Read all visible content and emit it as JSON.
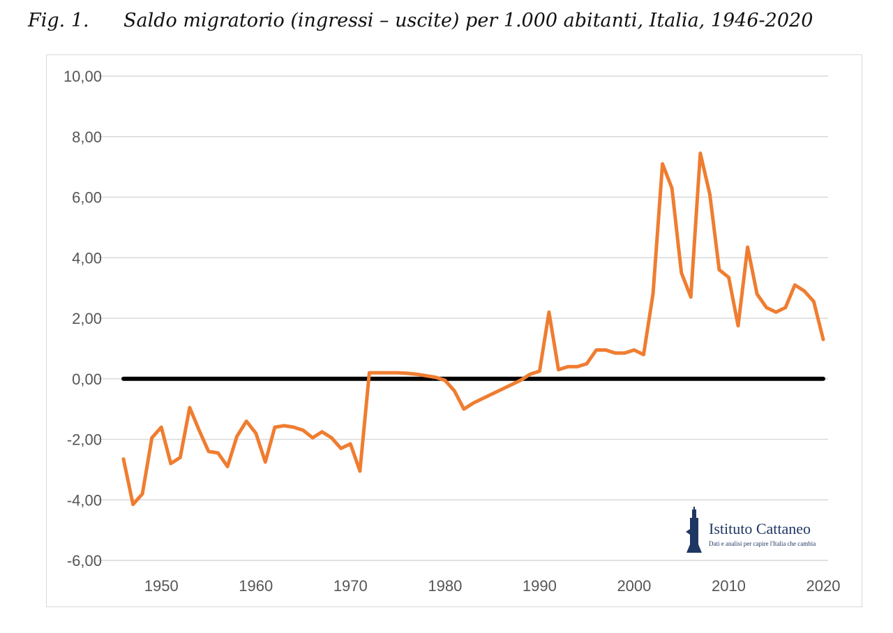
{
  "figure": {
    "label": "Fig. 1.",
    "title": "Saldo migratorio (ingressi – uscite) per 1.000 abitanti, Italia, 1946-2020"
  },
  "logo": {
    "name": "Istituto Cattaneo",
    "tagline": "Dati e analisi per capire l'Italia che cambia",
    "color": "#1f3763"
  },
  "colors": {
    "series": "#ef7d31",
    "zero_line": "#000000",
    "grid": "#d9d9d9",
    "tick_text": "#555555"
  },
  "chart_data": {
    "type": "line",
    "title": "Saldo migratorio (ingressi – uscite) per 1.000 abitanti, Italia, 1946-2020",
    "xlabel": "",
    "ylabel": "",
    "xlim": [
      1946,
      2020
    ],
    "ylim": [
      -6,
      10
    ],
    "x_ticks": [
      1950,
      1960,
      1970,
      1980,
      1990,
      2000,
      2010,
      2020
    ],
    "y_ticks": [
      "10,00",
      "8,00",
      "6,00",
      "4,00",
      "2,00",
      "0,00",
      "-2,00",
      "-4,00",
      "-6,00"
    ],
    "y_tick_values": [
      10,
      8,
      6,
      4,
      2,
      0,
      -2,
      -4,
      -6
    ],
    "grid": "horizontal",
    "reference_line": {
      "y": 0,
      "color": "#000000"
    },
    "series": [
      {
        "color": "#ef7d31",
        "x": [
          1946,
          1947,
          1948,
          1949,
          1950,
          1951,
          1952,
          1953,
          1954,
          1955,
          1956,
          1957,
          1958,
          1959,
          1960,
          1961,
          1962,
          1963,
          1964,
          1965,
          1966,
          1967,
          1968,
          1969,
          1970,
          1971,
          1972,
          1973,
          1974,
          1975,
          1976,
          1977,
          1978,
          1979,
          1980,
          1981,
          1982,
          1983,
          1984,
          1985,
          1986,
          1987,
          1988,
          1989,
          1990,
          1991,
          1992,
          1993,
          1994,
          1995,
          1996,
          1997,
          1998,
          1999,
          2000,
          2001,
          2002,
          2003,
          2004,
          2005,
          2006,
          2007,
          2008,
          2009,
          2010,
          2011,
          2012,
          2013,
          2014,
          2015,
          2016,
          2017,
          2018,
          2019,
          2020
        ],
        "values": [
          -2.65,
          -4.15,
          -3.8,
          -1.95,
          -1.6,
          -2.8,
          -2.6,
          -0.95,
          -1.7,
          -2.4,
          -2.45,
          -2.9,
          -1.9,
          -1.4,
          -1.8,
          -2.75,
          -1.6,
          -1.55,
          -1.6,
          -1.7,
          -1.95,
          -1.75,
          -1.95,
          -2.3,
          -2.15,
          -3.05,
          0.2,
          0.2,
          0.2,
          0.2,
          0.18,
          0.15,
          0.1,
          0.05,
          -0.05,
          -0.4,
          -1.0,
          -0.8,
          -0.65,
          -0.5,
          -0.35,
          -0.2,
          -0.05,
          0.15,
          0.25,
          2.2,
          0.3,
          0.4,
          0.4,
          0.5,
          0.95,
          0.95,
          0.85,
          0.85,
          0.95,
          0.8,
          2.8,
          7.1,
          6.3,
          3.5,
          2.7,
          7.45,
          6.1,
          3.6,
          3.35,
          1.75,
          4.35,
          2.8,
          2.35,
          2.2,
          2.35,
          3.1,
          2.9,
          2.55,
          1.3
        ]
      }
    ]
  }
}
